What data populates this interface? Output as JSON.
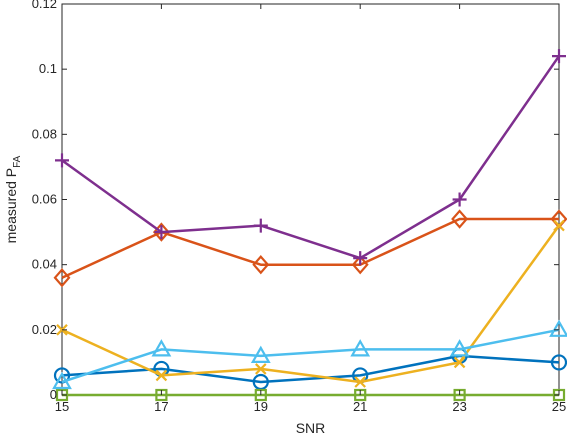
{
  "chart_data": {
    "type": "line",
    "xlabel": "SNR",
    "ylabel": {
      "main": "measured P",
      "subscript": "FA"
    },
    "xlim": [
      15,
      25
    ],
    "ylim": [
      0,
      0.12
    ],
    "x": [
      15,
      17,
      19,
      21,
      23,
      25
    ],
    "xticks": [
      15,
      17,
      19,
      21,
      23,
      25
    ],
    "xtick_labels": [
      "15",
      "17",
      "19",
      "21",
      "23",
      "25"
    ],
    "yticks": [
      0,
      0.02,
      0.04,
      0.06,
      0.08,
      0.1,
      0.12
    ],
    "ytick_labels": [
      "0",
      "0.02",
      "0.04",
      "0.06",
      "0.08",
      "0.1",
      "0.12"
    ],
    "grid": false,
    "legend": "none",
    "series": [
      {
        "marker": "circle",
        "color": "#0072BD",
        "values": [
          0.006,
          0.008,
          0.004,
          0.006,
          0.012,
          0.01
        ]
      },
      {
        "marker": "diamond",
        "color": "#D95319",
        "values": [
          0.036,
          0.05,
          0.04,
          0.04,
          0.054,
          0.054
        ]
      },
      {
        "marker": "x",
        "color": "#EDB120",
        "values": [
          0.02,
          0.006,
          0.008,
          0.004,
          0.01,
          0.052
        ]
      },
      {
        "marker": "plus",
        "color": "#7E2F8E",
        "values": [
          0.072,
          0.05,
          0.052,
          0.042,
          0.06,
          0.104
        ]
      },
      {
        "marker": "square",
        "color": "#77AC30",
        "values": [
          0,
          0,
          0,
          0,
          0,
          0
        ]
      },
      {
        "marker": "triangle",
        "color": "#4DBEEE",
        "values": [
          0.004,
          0.014,
          0.012,
          0.014,
          0.014,
          0.02
        ]
      }
    ]
  }
}
